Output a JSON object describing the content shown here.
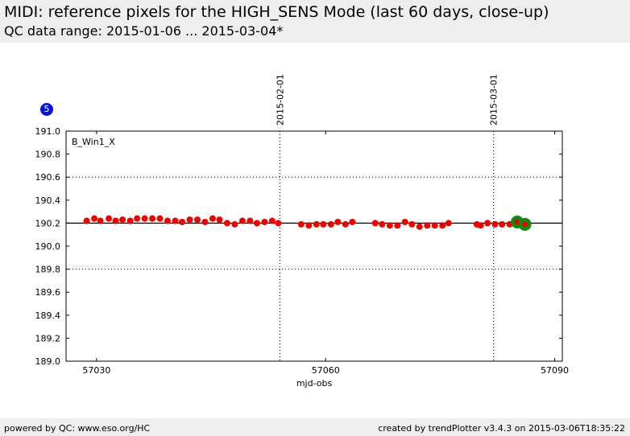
{
  "header": {
    "title": "MIDI: reference pixels for the HIGH_SENS Mode (last 60 days, close-up)",
    "subtitle": "QC data range: 2015-01-06 ... 2015-03-04*"
  },
  "footer": {
    "left": "powered by QC: www.eso.org/HC",
    "right": "created by trendPlotter v3.4.3 on 2015-03-06T18:35:22"
  },
  "badge": "5",
  "chart_data": {
    "type": "scatter",
    "panel_label": "B_Win1_X",
    "xlabel": "mjd-obs",
    "ylabel": "",
    "xlim": [
      57026,
      57091
    ],
    "ylim": [
      189.0,
      191.0
    ],
    "x_ticks": [
      57030,
      57060,
      57090
    ],
    "y_ticks": [
      189.0,
      189.2,
      189.4,
      189.6,
      189.8,
      190.0,
      190.2,
      190.4,
      190.6,
      190.8,
      191.0
    ],
    "y_tick_labels": [
      "189.0",
      "189.2",
      "189.4",
      "189.6",
      "189.8",
      "190.0",
      "190.2",
      "190.4",
      "190.6",
      "190.8",
      "191.0"
    ],
    "reference_line": 190.2,
    "dotted_lines": [
      189.8,
      190.6
    ],
    "date_markers": [
      {
        "x": 57054.0,
        "label": "2015-02-01"
      },
      {
        "x": 57082.0,
        "label": "2015-03-01"
      }
    ],
    "colors": {
      "normal": "#ee0000",
      "latest": "#118811",
      "reference": "#000000"
    },
    "series": [
      {
        "points": [
          [
            57028.7,
            190.22
          ],
          [
            57029.7,
            190.24
          ],
          [
            57030.5,
            190.22
          ],
          [
            57031.6,
            190.24
          ],
          [
            57032.5,
            190.22
          ],
          [
            57033.4,
            190.23
          ],
          [
            57034.4,
            190.22
          ],
          [
            57035.3,
            190.24
          ],
          [
            57036.3,
            190.24
          ],
          [
            57037.3,
            190.24
          ],
          [
            57038.3,
            190.24
          ],
          [
            57039.3,
            190.22
          ],
          [
            57040.3,
            190.22
          ],
          [
            57041.2,
            190.21
          ],
          [
            57042.2,
            190.23
          ],
          [
            57043.2,
            190.23
          ],
          [
            57044.2,
            190.21
          ],
          [
            57045.2,
            190.24
          ],
          [
            57046.1,
            190.23
          ],
          [
            57047.1,
            190.2
          ],
          [
            57048.1,
            190.19
          ],
          [
            57049.1,
            190.22
          ],
          [
            57050.1,
            190.22
          ],
          [
            57051.0,
            190.2
          ],
          [
            57052.0,
            190.21
          ],
          [
            57053.0,
            190.22
          ],
          [
            57053.8,
            190.2
          ],
          [
            57056.8,
            190.19
          ],
          [
            57057.8,
            190.18
          ],
          [
            57058.8,
            190.19
          ],
          [
            57059.7,
            190.19
          ],
          [
            57060.7,
            190.19
          ],
          [
            57061.6,
            190.21
          ],
          [
            57062.6,
            190.19
          ],
          [
            57063.5,
            190.21
          ],
          [
            57066.5,
            190.2
          ],
          [
            57067.4,
            190.19
          ],
          [
            57068.4,
            190.18
          ],
          [
            57069.4,
            190.18
          ],
          [
            57070.4,
            190.21
          ],
          [
            57071.3,
            190.19
          ],
          [
            57072.3,
            190.17
          ],
          [
            57073.3,
            190.18
          ],
          [
            57074.3,
            190.18
          ],
          [
            57075.3,
            190.18
          ],
          [
            57076.1,
            190.2
          ],
          [
            57079.8,
            190.19
          ],
          [
            57080.3,
            190.18
          ],
          [
            57081.2,
            190.2
          ],
          [
            57082.2,
            190.19
          ],
          [
            57083.1,
            190.19
          ],
          [
            57084.1,
            190.19
          ]
        ]
      },
      {
        "points": [
          [
            57085.1,
            190.21
          ],
          [
            57086.1,
            190.19
          ]
        ]
      }
    ]
  }
}
